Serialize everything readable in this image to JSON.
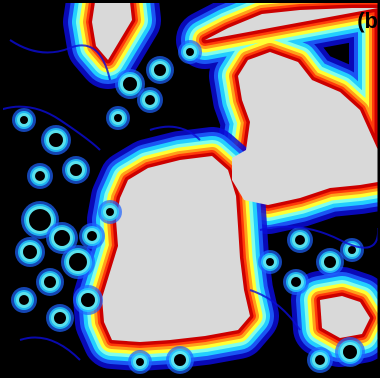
{
  "panel": {
    "label": "(b"
  },
  "colors": {
    "background": "#000000",
    "open_area": "#d9d9d9",
    "ramp": [
      "#0b0bd8",
      "#1d63ff",
      "#22cfff",
      "#82ffe9",
      "#ffff33",
      "#ff9f1a",
      "#ff3a0a",
      "#cc0000"
    ],
    "frame": "#000000"
  }
}
